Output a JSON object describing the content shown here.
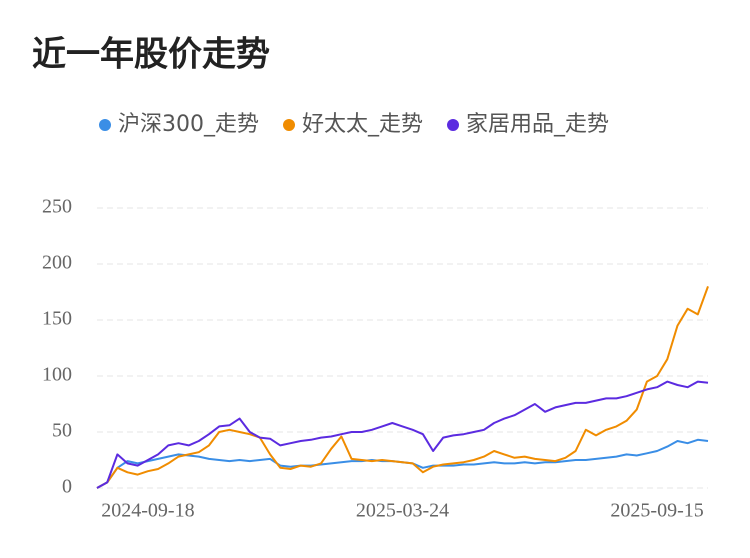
{
  "chart_data": {
    "type": "line",
    "title": "近一年股价走势",
    "categories": [
      null,
      null,
      null,
      null,
      null,
      "2024-09-18",
      null,
      null,
      null,
      null,
      null,
      null,
      null,
      null,
      null,
      null,
      null,
      null,
      null,
      null,
      null,
      null,
      null,
      null,
      null,
      null,
      null,
      null,
      null,
      null,
      "2025-03-24",
      null,
      null,
      null,
      null,
      null,
      null,
      null,
      null,
      null,
      null,
      null,
      null,
      null,
      null,
      null,
      null,
      null,
      null,
      null,
      null,
      null,
      null,
      null,
      null,
      "2025-09-15",
      null,
      null,
      null,
      null,
      null
    ],
    "series": [
      {
        "name": "沪深300_走势",
        "color": "#3a8ee6",
        "values": [
          0,
          5,
          18,
          24,
          22,
          24,
          26,
          28,
          30,
          29,
          28,
          26,
          25,
          24,
          25,
          24,
          25,
          26,
          20,
          19,
          20,
          20,
          21,
          22,
          23,
          24,
          24,
          25,
          24,
          24,
          23,
          22,
          18,
          20,
          20,
          20,
          21,
          21,
          22,
          23,
          22,
          22,
          23,
          22,
          23,
          23,
          24,
          25,
          25,
          26,
          27,
          28,
          30,
          29,
          31,
          33,
          37,
          42,
          40,
          43,
          42
        ]
      },
      {
        "name": "好太太_走势",
        "color": "#f08c00",
        "values": [
          0,
          5,
          18,
          14,
          12,
          15,
          17,
          22,
          28,
          30,
          32,
          38,
          50,
          52,
          50,
          48,
          45,
          30,
          18,
          17,
          20,
          19,
          22,
          35,
          46,
          26,
          25,
          24,
          25,
          24,
          23,
          22,
          14,
          19,
          21,
          22,
          23,
          25,
          28,
          33,
          30,
          27,
          28,
          26,
          25,
          24,
          27,
          33,
          52,
          47,
          52,
          55,
          60,
          70,
          95,
          100,
          115,
          145,
          160,
          155,
          180
        ]
      },
      {
        "name": "家居用品_走势",
        "color": "#5b2be0",
        "values": [
          0,
          5,
          30,
          22,
          20,
          25,
          30,
          38,
          40,
          38,
          42,
          48,
          55,
          56,
          62,
          50,
          45,
          44,
          38,
          40,
          42,
          43,
          45,
          46,
          48,
          50,
          50,
          52,
          55,
          58,
          55,
          52,
          48,
          33,
          45,
          47,
          48,
          50,
          52,
          58,
          62,
          65,
          70,
          75,
          68,
          72,
          74,
          76,
          76,
          78,
          80,
          80,
          82,
          85,
          88,
          90,
          95,
          92,
          90,
          95,
          94
        ]
      }
    ],
    "ylim": [
      0,
      250
    ],
    "yticks": [
      0,
      50,
      100,
      150,
      200,
      250
    ],
    "grid": true
  }
}
